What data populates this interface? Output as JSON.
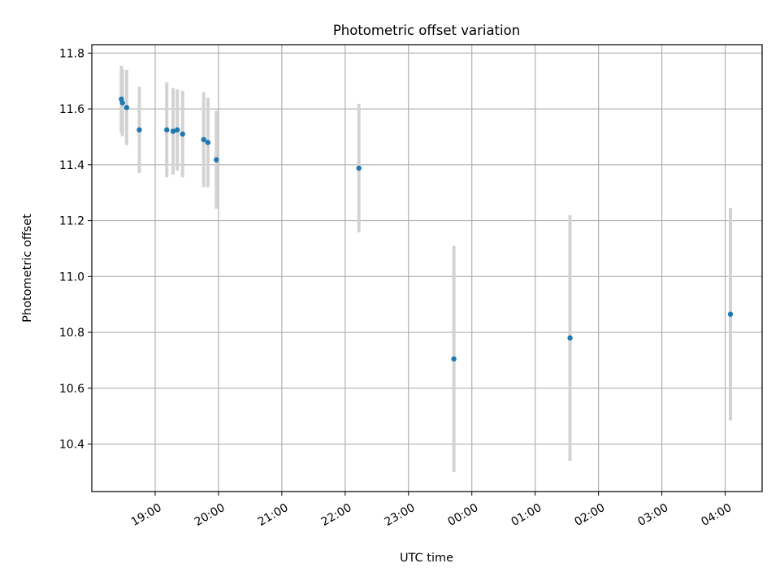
{
  "chart_data": {
    "type": "scatter",
    "title": "Photometric offset variation",
    "xlabel": "UTC time",
    "ylabel": "Photometric offset",
    "xlim": [
      "18:00",
      "04:35"
    ],
    "ylim": [
      10.23,
      11.83
    ],
    "grid": true,
    "x_ticks": [
      "19:00",
      "20:00",
      "21:00",
      "22:00",
      "23:00",
      "00:00",
      "01:00",
      "02:00",
      "03:00",
      "04:00"
    ],
    "y_ticks": [
      10.4,
      10.6,
      10.8,
      11.0,
      11.2,
      11.4,
      11.6,
      11.8
    ],
    "point_color": "#1f77b4",
    "errorbar_color": "#d3d3d3",
    "series": [
      {
        "x": [
          "18:28",
          "18:29",
          "18:33",
          "18:45",
          "19:11",
          "19:17",
          "19:21",
          "19:26",
          "19:46",
          "19:50",
          "19:58",
          "22:13",
          "23:43",
          "01:33",
          "04:05"
        ],
        "y": [
          11.635,
          11.622,
          11.605,
          11.525,
          11.525,
          11.52,
          11.525,
          11.51,
          11.49,
          11.48,
          11.418,
          11.388,
          10.705,
          10.78,
          10.865
        ],
        "yerr": [
          0.12,
          0.12,
          0.135,
          0.155,
          0.17,
          0.155,
          0.145,
          0.155,
          0.17,
          0.16,
          0.175,
          0.23,
          0.405,
          0.44,
          0.38
        ]
      }
    ]
  }
}
